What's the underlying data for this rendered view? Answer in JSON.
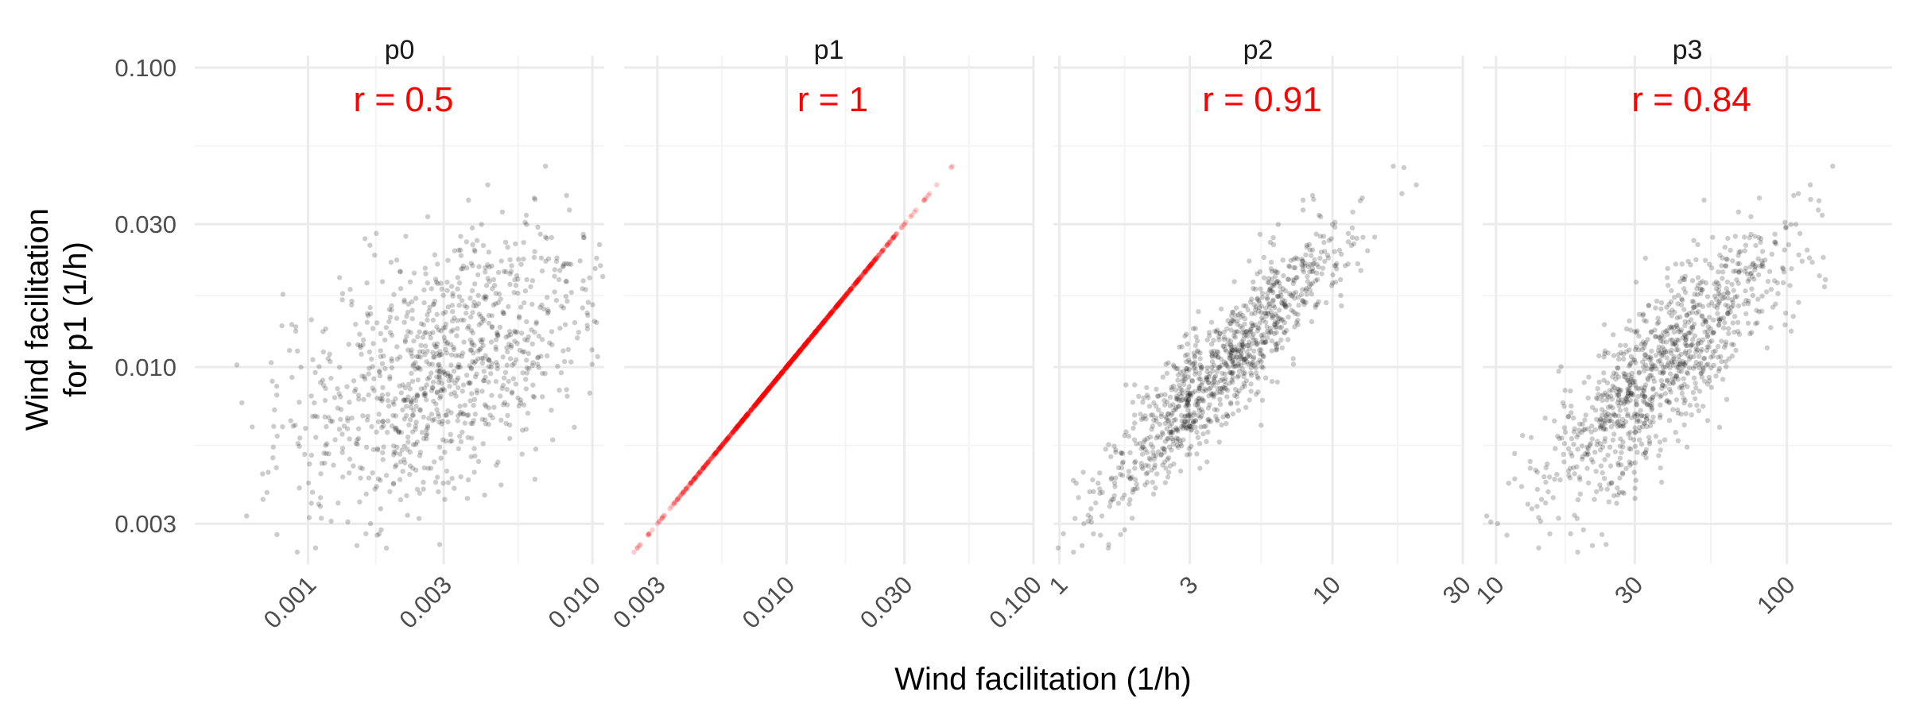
{
  "colors": {
    "points": "#000000",
    "highlight": "#ff0000",
    "grid_major": "#ebebeb",
    "grid_minor": "#f4f4f4",
    "text": "#4d4d4d"
  },
  "chart_data": {
    "type": "scatter",
    "layout": "faceted-row",
    "xlabel": "Wind facilitation (1/h)",
    "ylabel": [
      "Wind facilitation",
      "for p1 (1/h)"
    ],
    "y_scale": "log10",
    "x_scale": "log10",
    "ylim": [
      0.0022,
      0.1
    ],
    "y_ticks": [
      0.003,
      0.01,
      0.03,
      0.1
    ],
    "y_tick_labels": [
      "0.003",
      "0.010",
      "0.030",
      "0.100"
    ],
    "point_alpha": 0.2,
    "n_points": 1000,
    "panels": [
      {
        "strip": "p0",
        "r_label": "r = 0.5",
        "r": 0.5,
        "xlim": [
          0.0004,
          0.011
        ],
        "x_ticks": [
          0.001,
          0.003,
          0.01
        ],
        "x_tick_labels": [
          "0.001",
          "0.003",
          "0.010"
        ],
        "x_center": 0.003,
        "x_spread_log10": 0.27,
        "point_color": "#000000"
      },
      {
        "strip": "p1",
        "r_label": "r = 1",
        "r": 1.0,
        "xlim": [
          0.0022,
          0.1
        ],
        "x_ticks": [
          0.003,
          0.01,
          0.03,
          0.1
        ],
        "x_tick_labels": [
          "0.003",
          "0.010",
          "0.030",
          "0.100"
        ],
        "x_center": 0.01,
        "x_spread_log10": 0.24,
        "point_color": "#ff0000"
      },
      {
        "strip": "p2",
        "r_label": "r = 0.91",
        "r": 0.91,
        "xlim": [
          0.95,
          30
        ],
        "x_ticks": [
          1,
          3,
          10,
          30
        ],
        "x_tick_labels": [
          "1",
          "3",
          "10",
          "30"
        ],
        "x_center": 4.0,
        "x_spread_log10": 0.23,
        "point_color": "#000000"
      },
      {
        "strip": "p3",
        "r_label": "r = 0.84",
        "r": 0.84,
        "xlim": [
          9,
          230
        ],
        "x_ticks": [
          10,
          30,
          100
        ],
        "x_tick_labels": [
          "10",
          "30",
          "100"
        ],
        "x_center": 38.0,
        "x_spread_log10": 0.22,
        "point_color": "#000000"
      }
    ]
  }
}
